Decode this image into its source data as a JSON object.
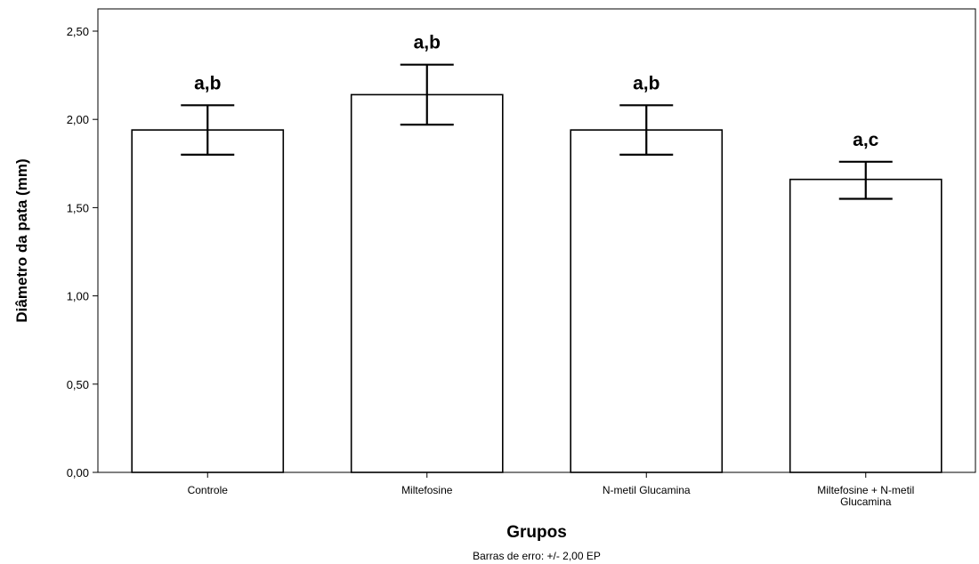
{
  "chart_data": {
    "type": "bar",
    "categories": [
      [
        "Controle"
      ],
      [
        "Miltefosine"
      ],
      [
        "N-metil Glucamina"
      ],
      [
        "Miltefosine + N-metil",
        "Glucamina"
      ]
    ],
    "values": [
      1.94,
      2.14,
      1.94,
      1.66
    ],
    "error_low": [
      1.8,
      1.97,
      1.8,
      1.55
    ],
    "error_high": [
      2.08,
      2.31,
      2.08,
      1.76
    ],
    "significance_labels": [
      "a,b",
      "a,b",
      "a,b",
      "a,c"
    ],
    "xlabel": "Grupos",
    "ylabel": "Diâmetro da pata (mm)",
    "ylim": [
      0,
      2.5
    ],
    "yticks": [
      0,
      0.5,
      1.0,
      1.5,
      2.0,
      2.5
    ],
    "ytick_labels": [
      "0,00",
      "0,50",
      "1,00",
      "1,50",
      "2,00",
      "2,50"
    ],
    "footnote": "Barras de erro: +/- 2,00 EP",
    "grid": false,
    "bar_fill": "#ffffff",
    "bar_stroke": "#000000"
  }
}
